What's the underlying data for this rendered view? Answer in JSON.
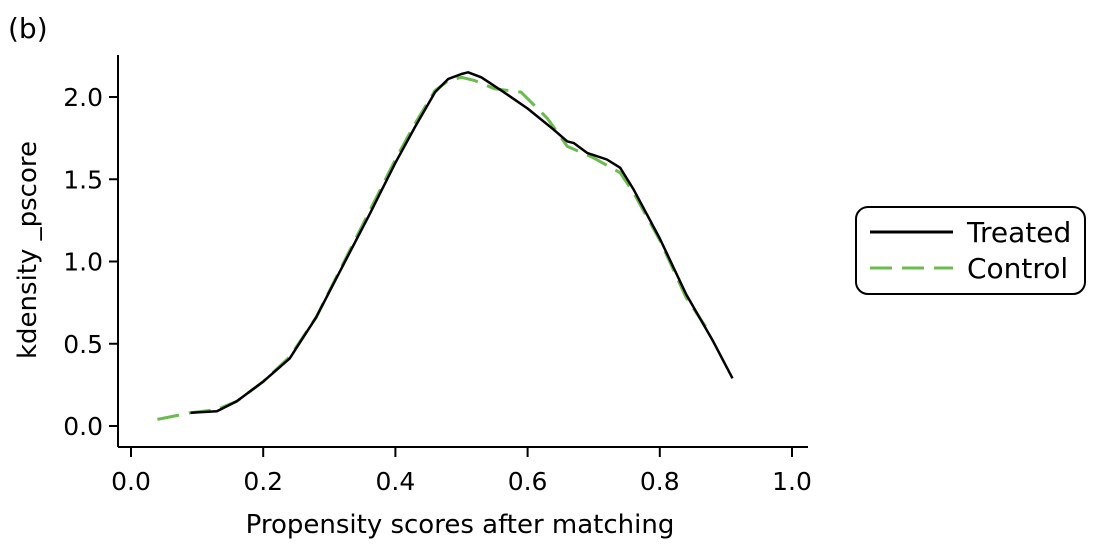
{
  "panel_label": "(b)",
  "chart_data": {
    "type": "line",
    "title": "",
    "xlabel": "Propensity scores after matching",
    "ylabel": "kdensity _pscore",
    "xlim": [
      0.0,
      1.0
    ],
    "ylim": [
      0.0,
      2.25
    ],
    "xticks": [
      0.0,
      0.2,
      0.4,
      0.6,
      0.8,
      1.0
    ],
    "xtick_labels": [
      "0.0",
      "0.2",
      "0.4",
      "0.6",
      "0.8",
      "1.0"
    ],
    "yticks": [
      0.0,
      0.5,
      1.0,
      1.5,
      2.0
    ],
    "ytick_labels": [
      "0.0",
      "0.5",
      "1.0",
      "1.5",
      "2.0"
    ],
    "grid": false,
    "legend": "right",
    "series": [
      {
        "name": "Treated",
        "color": "#000000",
        "dash": "solid",
        "points": [
          [
            0.09,
            0.08
          ],
          [
            0.13,
            0.09
          ],
          [
            0.16,
            0.15
          ],
          [
            0.2,
            0.27
          ],
          [
            0.24,
            0.41
          ],
          [
            0.28,
            0.66
          ],
          [
            0.32,
            0.97
          ],
          [
            0.36,
            1.28
          ],
          [
            0.4,
            1.6
          ],
          [
            0.43,
            1.82
          ],
          [
            0.46,
            2.03
          ],
          [
            0.48,
            2.11
          ],
          [
            0.5,
            2.14
          ],
          [
            0.51,
            2.15
          ],
          [
            0.53,
            2.12
          ],
          [
            0.56,
            2.04
          ],
          [
            0.6,
            1.93
          ],
          [
            0.64,
            1.8
          ],
          [
            0.66,
            1.73
          ],
          [
            0.67,
            1.72
          ],
          [
            0.69,
            1.66
          ],
          [
            0.72,
            1.62
          ],
          [
            0.74,
            1.57
          ],
          [
            0.76,
            1.44
          ],
          [
            0.8,
            1.14
          ],
          [
            0.84,
            0.8
          ],
          [
            0.88,
            0.52
          ],
          [
            0.91,
            0.29
          ]
        ]
      },
      {
        "name": "Control",
        "color": "#6cbb4f",
        "dash": "dashed",
        "points": [
          [
            0.04,
            0.04
          ],
          [
            0.09,
            0.08
          ],
          [
            0.13,
            0.1
          ],
          [
            0.16,
            0.15
          ],
          [
            0.2,
            0.27
          ],
          [
            0.24,
            0.42
          ],
          [
            0.28,
            0.66
          ],
          [
            0.32,
            0.98
          ],
          [
            0.36,
            1.3
          ],
          [
            0.4,
            1.62
          ],
          [
            0.43,
            1.84
          ],
          [
            0.46,
            2.04
          ],
          [
            0.48,
            2.1
          ],
          [
            0.5,
            2.12
          ],
          [
            0.52,
            2.1
          ],
          [
            0.55,
            2.05
          ],
          [
            0.59,
            2.03
          ],
          [
            0.63,
            1.87
          ],
          [
            0.66,
            1.7
          ],
          [
            0.7,
            1.63
          ],
          [
            0.74,
            1.54
          ],
          [
            0.76,
            1.42
          ],
          [
            0.8,
            1.13
          ],
          [
            0.84,
            0.78
          ],
          [
            0.87,
            0.6
          ]
        ]
      }
    ]
  }
}
